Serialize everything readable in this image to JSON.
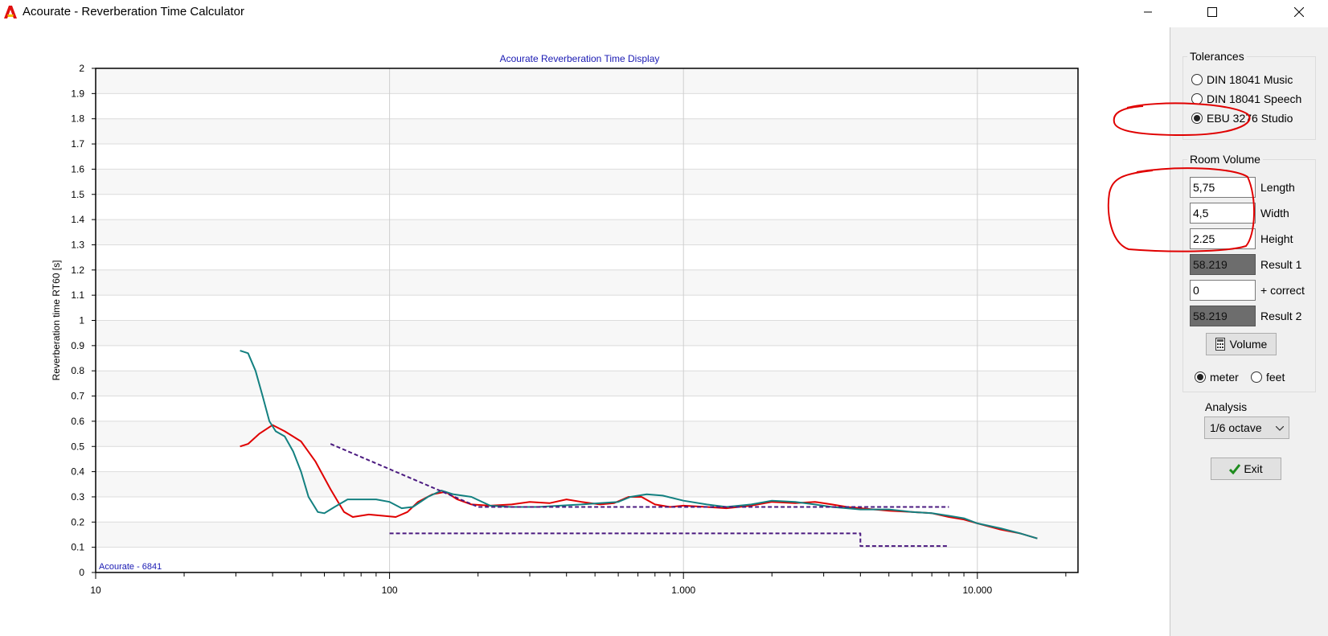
{
  "window": {
    "title": "Acourate - Reverberation Time Calculator",
    "icon": "acourate-logo-icon",
    "controls": [
      "minimize-icon",
      "maximize-icon",
      "close-icon"
    ]
  },
  "chart_data": {
    "type": "line",
    "title": "Acourate Reverberation Time Display",
    "ylabel": "Reverberation time RT60 [s]",
    "xlabel": "",
    "x_scale": "log",
    "xlim": [
      10,
      22000
    ],
    "ylim": [
      0,
      2
    ],
    "y_ticks": [
      "0",
      "0.1",
      "0.2",
      "0.3",
      "0.4",
      "0.5",
      "0.6",
      "0.7",
      "0.8",
      "0.9",
      "1",
      "1.1",
      "1.2",
      "1.3",
      "1.4",
      "1.5",
      "1.6",
      "1.7",
      "1.8",
      "1.9",
      "2"
    ],
    "x_tick_labels": [
      {
        "x": 10,
        "label": "10"
      },
      {
        "x": 100,
        "label": "100"
      },
      {
        "x": 1000,
        "label": "1.000"
      },
      {
        "x": 10000,
        "label": "10.000"
      }
    ],
    "grid": true,
    "watermark": "Acourate - 6841",
    "series": [
      {
        "color": "#e00000",
        "points": [
          [
            31,
            0.5
          ],
          [
            33,
            0.51
          ],
          [
            36,
            0.55
          ],
          [
            40,
            0.585
          ],
          [
            44,
            0.56
          ],
          [
            50,
            0.52
          ],
          [
            56,
            0.44
          ],
          [
            63,
            0.33
          ],
          [
            70,
            0.24
          ],
          [
            75,
            0.22
          ],
          [
            85,
            0.23
          ],
          [
            95,
            0.225
          ],
          [
            105,
            0.22
          ],
          [
            115,
            0.24
          ],
          [
            125,
            0.28
          ],
          [
            140,
            0.31
          ],
          [
            155,
            0.32
          ],
          [
            170,
            0.29
          ],
          [
            190,
            0.27
          ],
          [
            220,
            0.265
          ],
          [
            260,
            0.27
          ],
          [
            300,
            0.28
          ],
          [
            350,
            0.275
          ],
          [
            400,
            0.29
          ],
          [
            450,
            0.28
          ],
          [
            520,
            0.27
          ],
          [
            580,
            0.275
          ],
          [
            650,
            0.3
          ],
          [
            720,
            0.3
          ],
          [
            800,
            0.27
          ],
          [
            900,
            0.26
          ],
          [
            1000,
            0.265
          ],
          [
            1200,
            0.26
          ],
          [
            1400,
            0.255
          ],
          [
            1700,
            0.265
          ],
          [
            2000,
            0.28
          ],
          [
            2400,
            0.275
          ],
          [
            2800,
            0.28
          ],
          [
            3200,
            0.27
          ],
          [
            3600,
            0.26
          ],
          [
            4000,
            0.255
          ],
          [
            5000,
            0.245
          ],
          [
            6000,
            0.24
          ],
          [
            7000,
            0.235
          ],
          [
            8000,
            0.22
          ],
          [
            9000,
            0.21
          ],
          [
            10000,
            0.195
          ],
          [
            12000,
            0.17
          ],
          [
            14000,
            0.155
          ],
          [
            16000,
            0.135
          ]
        ]
      },
      {
        "color": "#138080",
        "points": [
          [
            31,
            0.88
          ],
          [
            33,
            0.87
          ],
          [
            35,
            0.8
          ],
          [
            37,
            0.7
          ],
          [
            39,
            0.6
          ],
          [
            41,
            0.56
          ],
          [
            44,
            0.54
          ],
          [
            47,
            0.48
          ],
          [
            50,
            0.4
          ],
          [
            53,
            0.3
          ],
          [
            57,
            0.24
          ],
          [
            60,
            0.235
          ],
          [
            65,
            0.26
          ],
          [
            72,
            0.29
          ],
          [
            80,
            0.29
          ],
          [
            90,
            0.29
          ],
          [
            100,
            0.28
          ],
          [
            110,
            0.255
          ],
          [
            120,
            0.26
          ],
          [
            135,
            0.3
          ],
          [
            150,
            0.325
          ],
          [
            165,
            0.31
          ],
          [
            190,
            0.3
          ],
          [
            220,
            0.265
          ],
          [
            260,
            0.26
          ],
          [
            320,
            0.26
          ],
          [
            380,
            0.265
          ],
          [
            450,
            0.27
          ],
          [
            520,
            0.275
          ],
          [
            600,
            0.28
          ],
          [
            660,
            0.3
          ],
          [
            750,
            0.31
          ],
          [
            850,
            0.305
          ],
          [
            1000,
            0.285
          ],
          [
            1200,
            0.27
          ],
          [
            1400,
            0.26
          ],
          [
            1700,
            0.27
          ],
          [
            2000,
            0.285
          ],
          [
            2400,
            0.28
          ],
          [
            2800,
            0.27
          ],
          [
            3200,
            0.26
          ],
          [
            3600,
            0.255
          ],
          [
            4000,
            0.25
          ],
          [
            5000,
            0.25
          ],
          [
            6000,
            0.24
          ],
          [
            7000,
            0.235
          ],
          [
            8000,
            0.225
          ],
          [
            9000,
            0.215
          ],
          [
            10000,
            0.195
          ],
          [
            12000,
            0.175
          ],
          [
            14000,
            0.155
          ],
          [
            16000,
            0.135
          ]
        ]
      },
      {
        "color": "#4b1a80",
        "dashed": true,
        "points": [
          [
            63,
            0.51
          ],
          [
            200,
            0.26
          ],
          [
            8000,
            0.26
          ]
        ]
      },
      {
        "color": "#4b1a80",
        "dashed": true,
        "points": [
          [
            100,
            0.155
          ],
          [
            4000,
            0.155
          ],
          [
            4000,
            0.105
          ],
          [
            8000,
            0.105
          ]
        ]
      }
    ]
  },
  "tolerances": {
    "legend": "Tolerances",
    "options": [
      {
        "label": "DIN 18041 Music",
        "checked": false
      },
      {
        "label": "DIN 18041 Speech",
        "checked": false
      },
      {
        "label": "EBU 3276 Studio",
        "checked": true
      }
    ]
  },
  "room_volume": {
    "legend": "Room Volume",
    "length": {
      "value": "5,75",
      "label": "Length"
    },
    "width": {
      "value": "4,5",
      "label": "Width"
    },
    "height": {
      "value": "2.25",
      "label": "Height"
    },
    "result1": {
      "value": "58.219",
      "label": "Result 1"
    },
    "correct": {
      "value": "0",
      "label": "+ correct"
    },
    "result2": {
      "value": "58.219",
      "label": "Result 2"
    },
    "volume_button": "Volume",
    "units": [
      {
        "label": "meter",
        "checked": true
      },
      {
        "label": "feet",
        "checked": false
      }
    ]
  },
  "analysis": {
    "label": "Analysis",
    "selected": "1/6 octave"
  },
  "exit_button": "Exit",
  "annotation_color": "#e00000"
}
